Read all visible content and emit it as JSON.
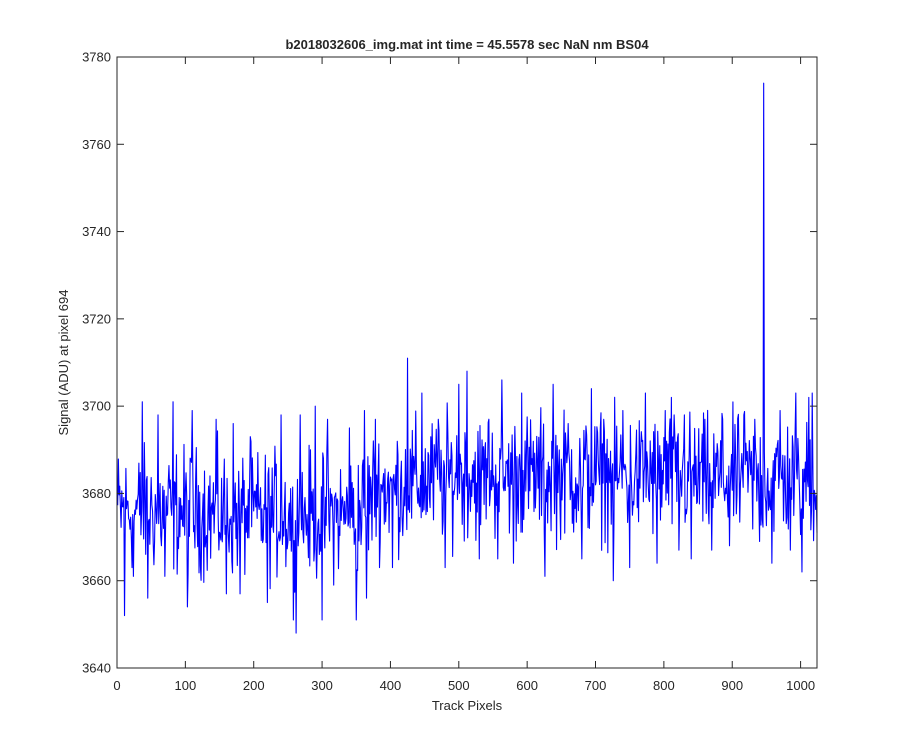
{
  "chart_data": {
    "type": "line",
    "title": "b2018032606_img.mat int time = 45.5578 sec  NaN nm BS04",
    "xlabel": "Track Pixels",
    "ylabel": "Signal (ADU) at pixel 694",
    "xlim": [
      0,
      1024
    ],
    "ylim": [
      3640,
      3780
    ],
    "xticks": [
      0,
      100,
      200,
      300,
      400,
      500,
      600,
      700,
      800,
      900,
      1000
    ],
    "xtick_labels": [
      "0",
      "100",
      "200",
      "300",
      "400",
      "500",
      "600",
      "700",
      "800",
      "900",
      "1000"
    ],
    "yticks": [
      3640,
      3660,
      3680,
      3700,
      3720,
      3740,
      3760,
      3780
    ],
    "ytick_labels": [
      "3640",
      "3660",
      "3680",
      "3700",
      "3720",
      "3740",
      "3760",
      "3780"
    ],
    "grid": false,
    "series": [
      {
        "color": "#0000ff",
        "length": 1024,
        "baseline": [
          [
            0,
            3676
          ],
          [
            100,
            3676
          ],
          [
            200,
            3675
          ],
          [
            300,
            3675
          ],
          [
            350,
            3675
          ],
          [
            380,
            3681
          ],
          [
            500,
            3684
          ],
          [
            700,
            3684
          ],
          [
            1024,
            3683
          ]
        ],
        "noise_amplitude": 7,
        "points": [
          [
            11,
            3652
          ],
          [
            24,
            3661
          ],
          [
            37,
            3701
          ],
          [
            45,
            3656
          ],
          [
            60,
            3698
          ],
          [
            70,
            3661
          ],
          [
            82,
            3701
          ],
          [
            103,
            3654
          ],
          [
            110,
            3699
          ],
          [
            145,
            3697
          ],
          [
            160,
            3657
          ],
          [
            170,
            3696
          ],
          [
            180,
            3657
          ],
          [
            195,
            3693
          ],
          [
            220,
            3655
          ],
          [
            240,
            3698
          ],
          [
            258,
            3651
          ],
          [
            262,
            3648
          ],
          [
            268,
            3698
          ],
          [
            290,
            3700
          ],
          [
            300,
            3651
          ],
          [
            308,
            3697
          ],
          [
            340,
            3695
          ],
          [
            350,
            3651
          ],
          [
            362,
            3699
          ],
          [
            365,
            3656
          ],
          [
            378,
            3697
          ],
          [
            403,
            3663
          ],
          [
            425,
            3711
          ],
          [
            446,
            3703
          ],
          [
            470,
            3697
          ],
          [
            480,
            3663
          ],
          [
            500,
            3705
          ],
          [
            512,
            3708
          ],
          [
            530,
            3665
          ],
          [
            544,
            3697
          ],
          [
            557,
            3665
          ],
          [
            563,
            3706
          ],
          [
            580,
            3664
          ],
          [
            592,
            3703
          ],
          [
            626,
            3661
          ],
          [
            638,
            3705
          ],
          [
            660,
            3696
          ],
          [
            680,
            3665
          ],
          [
            694,
            3704
          ],
          [
            712,
            3697
          ],
          [
            726,
            3660
          ],
          [
            740,
            3699
          ],
          [
            750,
            3663
          ],
          [
            773,
            3703
          ],
          [
            790,
            3664
          ],
          [
            802,
            3699
          ],
          [
            811,
            3702
          ],
          [
            822,
            3667
          ],
          [
            830,
            3698
          ],
          [
            840,
            3665
          ],
          [
            860,
            3697
          ],
          [
            870,
            3667
          ],
          [
            886,
            3697
          ],
          [
            896,
            3668
          ],
          [
            917,
            3698
          ],
          [
            933,
            3697
          ],
          [
            940,
            3669
          ],
          [
            946,
            3774
          ],
          [
            958,
            3664
          ],
          [
            970,
            3699
          ],
          [
            985,
            3667
          ],
          [
            993,
            3703
          ],
          [
            1002,
            3662
          ],
          [
            1012,
            3702
          ],
          [
            1017,
            3703
          ],
          [
            1024,
            3671
          ]
        ]
      }
    ]
  }
}
